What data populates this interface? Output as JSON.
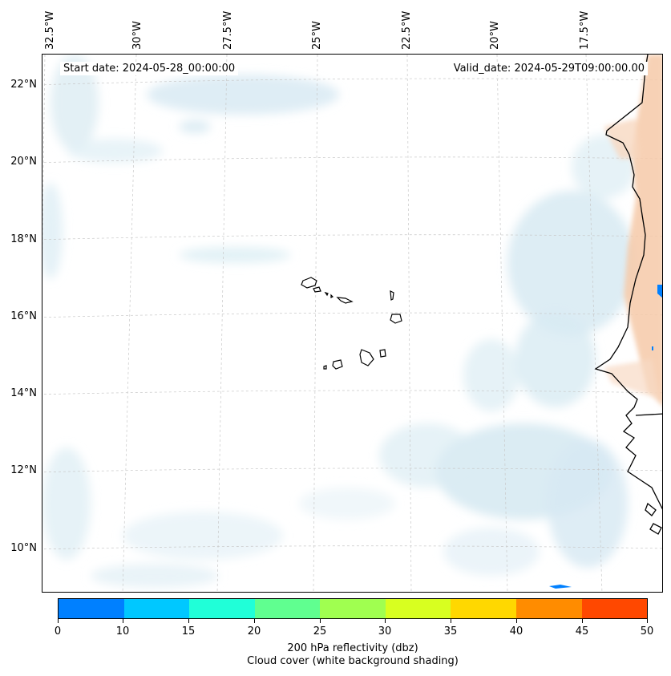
{
  "map": {
    "start_date": "Start date: 2024-05-28_00:00:00",
    "valid_date": "Valid_date: 2024-05-29T09:00:00.00",
    "lon_labels": [
      "32.5°W",
      "30°W",
      "27.5°W",
      "25°W",
      "22.5°W",
      "20°W",
      "17.5°W"
    ],
    "lat_labels": [
      "22°N",
      "20°N",
      "18°N",
      "16°N",
      "14°N",
      "12°N",
      "10°N"
    ],
    "extent": {
      "lon_min": -32.8,
      "lon_max": -16.0,
      "lat_min": 8.9,
      "lat_max": 22.8
    }
  },
  "colorbar": {
    "tick_labels": [
      "0",
      "10",
      "15",
      "20",
      "25",
      "30",
      "35",
      "40",
      "45",
      "50"
    ],
    "colors": [
      "#0080ff",
      "#00c8ff",
      "#20ffd8",
      "#60ff90",
      "#a0ff50",
      "#d8ff20",
      "#ffd800",
      "#ff8c00",
      "#ff4800"
    ],
    "title_line1": "200 hPa reflectivity (dbz)",
    "title_line2": "Cloud cover (white background shading)"
  }
}
